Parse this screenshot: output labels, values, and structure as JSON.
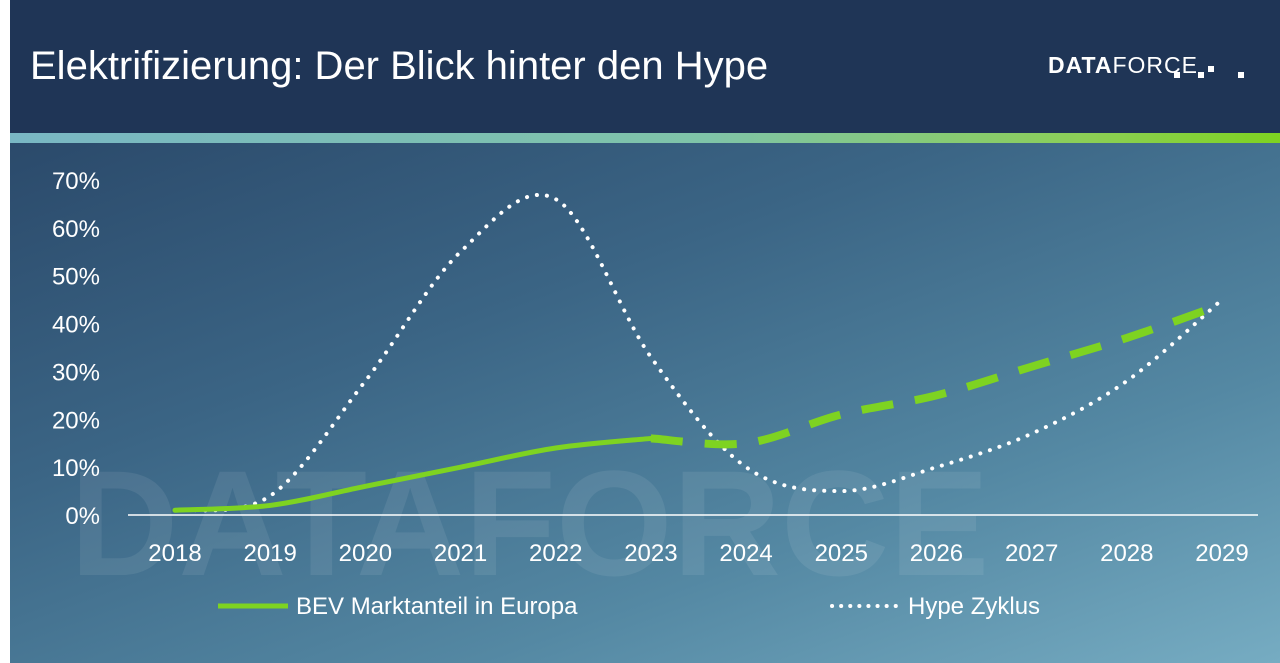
{
  "header": {
    "title": "Elektrifizierung: Der Blick hinter den Hype",
    "logo_bold": "DATA",
    "logo_light": "FORCE"
  },
  "colors": {
    "header_bg": "#1f3556",
    "bev_line": "#7ed321",
    "hype_line": "#ffffff"
  },
  "chart_data": {
    "type": "line",
    "x": [
      "2018",
      "2019",
      "2020",
      "2021",
      "2022",
      "2023",
      "2024",
      "2025",
      "2026",
      "2027",
      "2028",
      "2029"
    ],
    "ylim": [
      0,
      70
    ],
    "yticks": [
      "0%",
      "10%",
      "20%",
      "30%",
      "40%",
      "50%",
      "60%",
      "70%"
    ],
    "grid": false,
    "legend_position": "bottom",
    "series": [
      {
        "name": "BEV Marktanteil in Europa",
        "style": "solid-then-dashed",
        "color": "#7ed321",
        "x": [
          2018,
          2019,
          2020,
          2021,
          2022,
          2023,
          2024,
          2025,
          2026,
          2027,
          2028,
          2029
        ],
        "values": [
          1,
          2,
          6,
          10,
          14,
          16,
          15,
          21,
          25,
          31,
          37,
          44
        ],
        "forecast_from": "2023"
      },
      {
        "name": "Hype Zyklus",
        "style": "dotted",
        "color": "#ffffff",
        "x": [
          2018,
          2019,
          2020,
          2021,
          2022,
          2023,
          2024,
          2025,
          2026,
          2027,
          2028,
          2029
        ],
        "values": [
          1,
          4,
          28,
          55,
          66,
          33,
          10,
          5,
          10,
          17,
          28,
          45
        ]
      }
    ]
  }
}
